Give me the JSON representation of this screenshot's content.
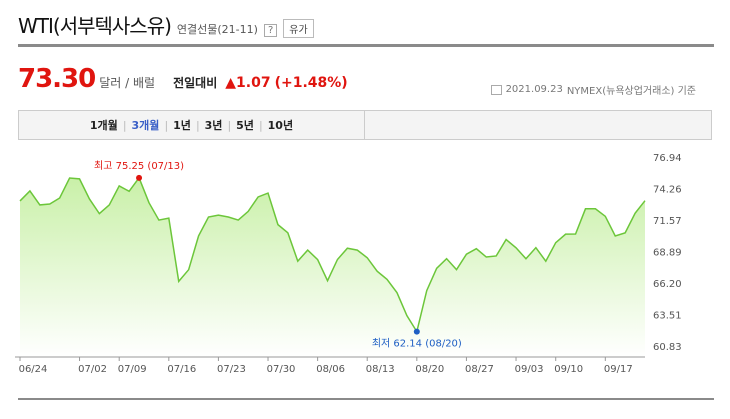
{
  "header": {
    "title": "WTI(서부텍사스유)",
    "contract": "연결선물(21-11)",
    "help": "?",
    "tag": "유가"
  },
  "quote": {
    "price": "73.30",
    "unit": "달러 / 배럴",
    "change_label": "전일대비",
    "change": "▲1.07",
    "change_pct": "(+1.48%)",
    "date": "2021.09.23",
    "source": "NYMEX(뉴욕상업거래소) 기준"
  },
  "tabs": [
    "1개월",
    "3개월",
    "1년",
    "3년",
    "5년",
    "10년"
  ],
  "chart_data": {
    "type": "area",
    "color": "#6cc63a",
    "fill": "#c9f0a8",
    "categories": [
      "06/24",
      null,
      null,
      null,
      null,
      null,
      "07/02",
      null,
      null,
      null,
      "07/09",
      null,
      null,
      null,
      null,
      "07/16",
      null,
      null,
      null,
      null,
      "07/23",
      null,
      null,
      null,
      null,
      "07/30",
      null,
      null,
      null,
      null,
      "08/06",
      null,
      null,
      null,
      null,
      "08/13",
      null,
      null,
      null,
      null,
      "08/20",
      null,
      null,
      null,
      null,
      "08/27",
      null,
      null,
      null,
      null,
      "09/03",
      null,
      null,
      null,
      "09/10",
      null,
      null,
      null,
      null,
      "09/17",
      null,
      null,
      null,
      null
    ],
    "values": [
      73.28,
      74.13,
      72.94,
      73.02,
      73.53,
      75.23,
      75.16,
      73.45,
      72.2,
      72.94,
      74.56,
      74.1,
      75.25,
      73.13,
      71.65,
      71.81,
      66.42,
      67.42,
      70.3,
      71.91,
      72.07,
      71.91,
      71.65,
      72.39,
      73.62,
      73.95,
      71.26,
      70.56,
      68.15,
      69.09,
      68.28,
      66.48,
      68.29,
      69.25,
      69.09,
      68.44,
      67.29,
      66.59,
      65.46,
      63.5,
      62.14,
      65.64,
      67.54,
      68.36,
      67.42,
      68.74,
      69.21,
      68.5,
      68.59,
      69.99,
      69.29,
      68.35,
      69.3,
      68.14,
      69.72,
      70.45,
      70.46,
      72.61,
      72.61,
      71.97,
      70.29,
      70.56,
      72.23,
      73.3
    ],
    "ylim": [
      60.83,
      76.94
    ],
    "yticks": [
      76.94,
      74.26,
      71.57,
      68.89,
      {
        "value": 66.2,
        "label": "66.20"
      },
      63.51,
      60.83
    ],
    "annotations": [
      {
        "text": "최고 75.25 (07/13)",
        "index": 12,
        "color": "#e0150f"
      },
      {
        "text": "최저 62.14 (08/20)",
        "index": 40,
        "color": "#1f5fc4"
      }
    ]
  }
}
